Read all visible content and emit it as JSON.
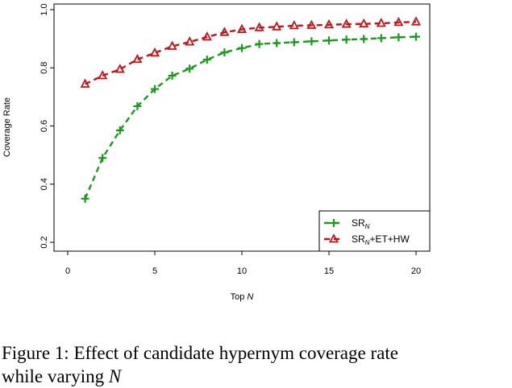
{
  "chart_data": {
    "type": "line",
    "title": "",
    "xlabel_prefix": "Top ",
    "xlabel_var": "N",
    "ylabel": "Coverage Rate",
    "xlim": [
      0,
      20
    ],
    "ylim": [
      0.2,
      1.0
    ],
    "xticks": [
      0,
      5,
      10,
      15,
      20
    ],
    "yticks": [
      0.2,
      0.4,
      0.6,
      0.8,
      1.0
    ],
    "ytick_labels": [
      "0.2",
      "0.4",
      "0.6",
      "0.8",
      "1.0"
    ],
    "grid": false,
    "legend_position": "bottom-right",
    "x": [
      1,
      2,
      3,
      4,
      5,
      6,
      7,
      8,
      9,
      10,
      11,
      12,
      13,
      14,
      15,
      16,
      17,
      18,
      19,
      20
    ],
    "series": [
      {
        "name": "SR_N",
        "legend_base": "SR",
        "legend_sub": "N",
        "legend_suffix": "",
        "color": "#1a9a1a",
        "marker": "plus",
        "values": [
          0.35,
          0.49,
          0.585,
          0.668,
          0.727,
          0.773,
          0.797,
          0.828,
          0.853,
          0.868,
          0.882,
          0.885,
          0.888,
          0.891,
          0.894,
          0.897,
          0.899,
          0.902,
          0.905,
          0.907
        ]
      },
      {
        "name": "SR_N+ET+HW",
        "legend_base": "SR",
        "legend_sub": "N",
        "legend_suffix": "+ET+HW",
        "color": "#c0141a",
        "marker": "triangle",
        "values": [
          0.744,
          0.773,
          0.795,
          0.829,
          0.851,
          0.874,
          0.889,
          0.906,
          0.922,
          0.932,
          0.938,
          0.941,
          0.945,
          0.946,
          0.948,
          0.95,
          0.951,
          0.953,
          0.956,
          0.958
        ]
      }
    ]
  },
  "caption": {
    "line1": "Figure 1:  Effect of candidate hypernym coverage rate",
    "line2": "while varying"
  }
}
